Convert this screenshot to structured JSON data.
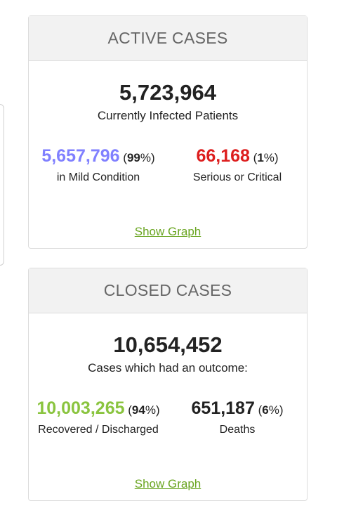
{
  "colors": {
    "mild": "#8080ff",
    "serious": "#dd1e1e",
    "recovered": "#8ac43f",
    "deaths": "#222222",
    "link": "#6aa521"
  },
  "active": {
    "header": "ACTIVE CASES",
    "total": "5,723,964",
    "total_caption": "Currently Infected Patients",
    "mild": {
      "value": "5,657,796",
      "pct_open": "(",
      "pct": "99",
      "pct_close": "%)",
      "caption": "in Mild Condition"
    },
    "serious": {
      "value": "66,168",
      "pct_open": "(",
      "pct": "1",
      "pct_close": "%)",
      "caption": "Serious or Critical"
    },
    "link": "Show Graph"
  },
  "closed": {
    "header": "CLOSED CASES",
    "total": "10,654,452",
    "total_caption": "Cases which had an outcome:",
    "recovered": {
      "value": "10,003,265",
      "pct_open": "(",
      "pct": "94",
      "pct_close": "%)",
      "caption": "Recovered / Discharged"
    },
    "deaths": {
      "value": "651,187",
      "pct_open": "(",
      "pct": "6",
      "pct_close": "%)",
      "caption": "Deaths"
    },
    "link": "Show Graph"
  }
}
